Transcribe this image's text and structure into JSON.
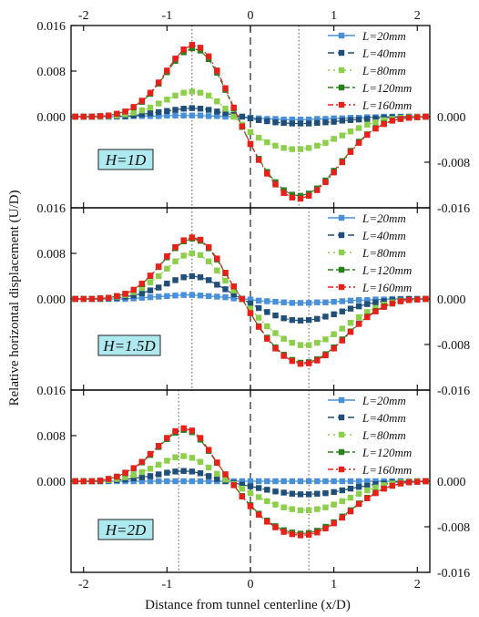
{
  "figure": {
    "xlabel": "Distance from tunnel centerline (x/D)",
    "ylabel": "Relative horizontal displacement (U/D)",
    "colors": {
      "L=20mm": "#4a90d9",
      "L=40mm": "#1f4e79",
      "L=80mm": "#8ccf4a",
      "L=120mm": "#2e7d1e",
      "L=160mm": "#e8201a",
      "label_box": "#aee9f0"
    }
  },
  "chart_data": [
    {
      "type": "line",
      "panel_label": "H=1D",
      "xlim": [
        -2.15,
        2.15
      ],
      "ylim": [
        -0.016,
        0.016
      ],
      "xticks": [
        -2,
        -1,
        0,
        1,
        2
      ],
      "xtick_labels": [
        "-2",
        "-1",
        "0",
        "1",
        "2"
      ],
      "yticks_left": [
        0.0,
        0.008,
        0.016
      ],
      "ytick_labels_left": [
        "0.000",
        "0.008",
        "0.016"
      ],
      "yticks_right": [
        -0.016,
        -0.008,
        0.0
      ],
      "ytick_labels_right": [
        "-0.016",
        "-0.008",
        "0.000"
      ],
      "show_top_tick_labels": true,
      "show_bottom_tick_labels": false,
      "vertical_reference_lines": [
        -0.7,
        0.58
      ],
      "legend_position": "top-right",
      "x": [
        -2.1,
        -2.0,
        -1.9,
        -1.8,
        -1.7,
        -1.6,
        -1.5,
        -1.4,
        -1.3,
        -1.2,
        -1.1,
        -1.0,
        -0.9,
        -0.8,
        -0.7,
        -0.6,
        -0.5,
        -0.4,
        -0.3,
        -0.2,
        -0.1,
        0.0,
        0.1,
        0.2,
        0.3,
        0.4,
        0.5,
        0.6,
        0.7,
        0.8,
        0.9,
        1.0,
        1.1,
        1.2,
        1.3,
        1.4,
        1.5,
        1.6,
        1.7,
        1.8,
        1.9,
        2.0,
        2.1
      ],
      "series": [
        {
          "name": "L=20mm",
          "marker": "square",
          "values": [
            0.0,
            0.0,
            0.0,
            0.0,
            0.0,
            0.0,
            0.0,
            0.0001,
            0.0001,
            0.0001,
            0.0001,
            0.0002,
            0.0002,
            0.0002,
            0.0002,
            0.0002,
            0.0001,
            0.0001,
            0.0,
            0.0,
            0.0,
            -0.0002,
            -0.0003,
            -0.0004,
            -0.0004,
            -0.0005,
            -0.0005,
            -0.0005,
            -0.0005,
            -0.0004,
            -0.0004,
            -0.0003,
            -0.0003,
            -0.0002,
            -0.0002,
            -0.0001,
            -0.0001,
            0.0,
            0.0,
            0.0,
            0.0,
            0.0,
            0.0
          ]
        },
        {
          "name": "L=40mm",
          "marker": "square",
          "values": [
            0.0,
            0.0,
            0.0,
            0.0,
            0.0,
            0.0001,
            0.0001,
            0.0002,
            0.0004,
            0.0006,
            0.0008,
            0.001,
            0.0012,
            0.0014,
            0.0015,
            0.0014,
            0.0012,
            0.0009,
            0.0006,
            0.0003,
            0.0,
            -0.0003,
            -0.0006,
            -0.0008,
            -0.001,
            -0.0011,
            -0.0012,
            -0.0012,
            -0.0012,
            -0.0011,
            -0.001,
            -0.0009,
            -0.0007,
            -0.0006,
            -0.0005,
            -0.0004,
            -0.0003,
            -0.0002,
            -0.0001,
            -0.0001,
            0.0,
            0.0,
            0.0
          ]
        },
        {
          "name": "L=80mm",
          "marker": "square",
          "values": [
            0.0,
            0.0,
            0.0,
            0.0,
            0.0001,
            0.0002,
            0.0004,
            0.0007,
            0.0011,
            0.0016,
            0.0023,
            0.003,
            0.0037,
            0.0042,
            0.0044,
            0.0042,
            0.0037,
            0.0027,
            0.0014,
            0.0,
            -0.0014,
            -0.0027,
            -0.0037,
            -0.0045,
            -0.0051,
            -0.0055,
            -0.0057,
            -0.0057,
            -0.0055,
            -0.0051,
            -0.0046,
            -0.0039,
            -0.0033,
            -0.0026,
            -0.002,
            -0.0014,
            -0.001,
            -0.0006,
            -0.0004,
            -0.0002,
            -0.0001,
            0.0,
            0.0
          ]
        },
        {
          "name": "L=120mm",
          "marker": "square",
          "values": [
            0.0,
            0.0,
            0.0,
            0.0001,
            0.0002,
            0.0005,
            0.0009,
            0.0016,
            0.0026,
            0.004,
            0.0058,
            0.0078,
            0.0098,
            0.0113,
            0.012,
            0.0116,
            0.0101,
            0.0077,
            0.0047,
            0.0014,
            -0.0018,
            -0.0048,
            -0.0074,
            -0.0097,
            -0.0115,
            -0.0129,
            -0.0137,
            -0.0139,
            -0.0135,
            -0.0126,
            -0.0112,
            -0.0095,
            -0.0078,
            -0.006,
            -0.0044,
            -0.0031,
            -0.002,
            -0.0012,
            -0.0007,
            -0.0004,
            -0.0002,
            -0.0001,
            0.0
          ]
        },
        {
          "name": "L=160mm",
          "marker": "square",
          "values": [
            0.0,
            0.0,
            0.0,
            0.0001,
            0.0002,
            0.0005,
            0.0009,
            0.0017,
            0.0028,
            0.0042,
            0.006,
            0.0081,
            0.0102,
            0.0118,
            0.0126,
            0.0121,
            0.0106,
            0.0081,
            0.005,
            0.0016,
            -0.0017,
            -0.0048,
            -0.0076,
            -0.01,
            -0.0119,
            -0.0134,
            -0.0142,
            -0.0144,
            -0.0139,
            -0.0129,
            -0.0115,
            -0.0098,
            -0.008,
            -0.0062,
            -0.0046,
            -0.0032,
            -0.0021,
            -0.0013,
            -0.0007,
            -0.0004,
            -0.0002,
            -0.0001,
            0.0
          ]
        }
      ]
    },
    {
      "type": "line",
      "panel_label": "H=1.5D",
      "xlim": [
        -2.15,
        2.15
      ],
      "ylim": [
        -0.016,
        0.016
      ],
      "xticks": [
        -2,
        -1,
        0,
        1,
        2
      ],
      "xtick_labels": [
        "-2",
        "-1",
        "0",
        "1",
        "2"
      ],
      "yticks_left": [
        0.0,
        0.008,
        0.016
      ],
      "ytick_labels_left": [
        "0.000",
        "0.008",
        "0.016"
      ],
      "yticks_right": [
        -0.016,
        -0.008,
        0.0
      ],
      "ytick_labels_right": [
        "-0.016",
        "-0.008",
        "0.000"
      ],
      "show_top_tick_labels": false,
      "show_bottom_tick_labels": false,
      "vertical_reference_lines": [
        -0.7,
        0.7
      ],
      "legend_position": "top-right",
      "x": [
        -2.1,
        -2.0,
        -1.9,
        -1.8,
        -1.7,
        -1.6,
        -1.5,
        -1.4,
        -1.3,
        -1.2,
        -1.1,
        -1.0,
        -0.9,
        -0.8,
        -0.7,
        -0.6,
        -0.5,
        -0.4,
        -0.3,
        -0.2,
        -0.1,
        0.0,
        0.1,
        0.2,
        0.3,
        0.4,
        0.5,
        0.6,
        0.7,
        0.8,
        0.9,
        1.0,
        1.1,
        1.2,
        1.3,
        1.4,
        1.5,
        1.6,
        1.7,
        1.8,
        1.9,
        2.0,
        2.1
      ],
      "series": [
        {
          "name": "L=20mm",
          "marker": "square",
          "values": [
            0.0,
            0.0,
            0.0,
            0.0,
            0.0,
            0.0,
            0.0,
            0.0001,
            0.0002,
            0.0003,
            0.0004,
            0.0005,
            0.0006,
            0.0007,
            0.0007,
            0.0006,
            0.0005,
            0.0004,
            0.0003,
            0.0001,
            0.0,
            -0.0001,
            -0.0003,
            -0.0004,
            -0.0005,
            -0.0006,
            -0.0007,
            -0.0007,
            -0.0007,
            -0.0006,
            -0.0006,
            -0.0005,
            -0.0004,
            -0.0003,
            -0.0002,
            -0.0002,
            -0.0001,
            -0.0001,
            0.0,
            0.0,
            0.0,
            0.0,
            0.0
          ]
        },
        {
          "name": "L=40mm",
          "marker": "square",
          "values": [
            0.0,
            0.0,
            0.0,
            0.0,
            0.0001,
            0.0002,
            0.0004,
            0.0006,
            0.001,
            0.0015,
            0.002,
            0.0027,
            0.0033,
            0.0038,
            0.004,
            0.0038,
            0.0033,
            0.0025,
            0.0017,
            0.0008,
            0.0,
            -0.0008,
            -0.0016,
            -0.0023,
            -0.0029,
            -0.0034,
            -0.0037,
            -0.0038,
            -0.0037,
            -0.0035,
            -0.0031,
            -0.0027,
            -0.0022,
            -0.0017,
            -0.0013,
            -0.0009,
            -0.0006,
            -0.0004,
            -0.0002,
            -0.0001,
            0.0,
            0.0,
            0.0
          ]
        },
        {
          "name": "L=80mm",
          "marker": "square",
          "values": [
            0.0,
            0.0,
            0.0,
            0.0001,
            0.0002,
            0.0004,
            0.0007,
            0.0012,
            0.0019,
            0.0029,
            0.004,
            0.0053,
            0.0066,
            0.0076,
            0.008,
            0.0077,
            0.0066,
            0.005,
            0.0032,
            0.0015,
            0.0,
            -0.0017,
            -0.0033,
            -0.0048,
            -0.006,
            -0.007,
            -0.0077,
            -0.0081,
            -0.0081,
            -0.0077,
            -0.0071,
            -0.0062,
            -0.0052,
            -0.0042,
            -0.0032,
            -0.0023,
            -0.0016,
            -0.001,
            -0.0006,
            -0.0003,
            -0.0002,
            -0.0001,
            0.0
          ]
        },
        {
          "name": "L=120mm",
          "marker": "square",
          "values": [
            0.0,
            0.0,
            0.0,
            0.0001,
            0.0002,
            0.0005,
            0.0009,
            0.0016,
            0.0026,
            0.004,
            0.0056,
            0.0073,
            0.0089,
            0.0101,
            0.0106,
            0.0102,
            0.0089,
            0.0069,
            0.0045,
            0.0022,
            0.0,
            -0.0025,
            -0.0048,
            -0.0068,
            -0.0085,
            -0.0098,
            -0.0107,
            -0.0112,
            -0.0111,
            -0.0106,
            -0.0097,
            -0.0085,
            -0.0071,
            -0.0057,
            -0.0043,
            -0.0031,
            -0.0021,
            -0.0013,
            -0.0008,
            -0.0004,
            -0.0002,
            -0.0001,
            0.0
          ]
        },
        {
          "name": "L=160mm",
          "marker": "square",
          "values": [
            0.0,
            0.0,
            0.0,
            0.0001,
            0.0002,
            0.0005,
            0.0009,
            0.0016,
            0.0027,
            0.0041,
            0.0057,
            0.0075,
            0.0091,
            0.0103,
            0.0108,
            0.0104,
            0.0091,
            0.0071,
            0.0046,
            0.0022,
            0.0,
            -0.0025,
            -0.0049,
            -0.007,
            -0.0087,
            -0.01,
            -0.0109,
            -0.0114,
            -0.0113,
            -0.0108,
            -0.0099,
            -0.0087,
            -0.0073,
            -0.0058,
            -0.0044,
            -0.0032,
            -0.0022,
            -0.0014,
            -0.0008,
            -0.0004,
            -0.0002,
            -0.0001,
            0.0
          ]
        }
      ]
    },
    {
      "type": "line",
      "panel_label": "H=2D",
      "xlim": [
        -2.15,
        2.15
      ],
      "ylim": [
        -0.016,
        0.016
      ],
      "xticks": [
        -2,
        -1,
        0,
        1,
        2
      ],
      "xtick_labels": [
        "-2",
        "-1",
        "0",
        "1",
        "2"
      ],
      "yticks_left": [
        0.0,
        0.008,
        0.016
      ],
      "ytick_labels_left": [
        "0.000",
        "0.008",
        "0.016"
      ],
      "yticks_right": [
        -0.016,
        -0.008,
        0.0
      ],
      "ytick_labels_right": [
        "-0.016",
        "-0.008",
        "0.000"
      ],
      "show_top_tick_labels": false,
      "show_bottom_tick_labels": true,
      "vertical_reference_lines": [
        -0.86,
        0.7
      ],
      "legend_position": "top-right",
      "x": [
        -2.1,
        -2.0,
        -1.9,
        -1.8,
        -1.7,
        -1.6,
        -1.5,
        -1.4,
        -1.3,
        -1.2,
        -1.1,
        -1.0,
        -0.9,
        -0.8,
        -0.7,
        -0.6,
        -0.5,
        -0.4,
        -0.3,
        -0.2,
        -0.1,
        0.0,
        0.1,
        0.2,
        0.3,
        0.4,
        0.5,
        0.6,
        0.7,
        0.8,
        0.9,
        1.0,
        1.1,
        1.2,
        1.3,
        1.4,
        1.5,
        1.6,
        1.7,
        1.8,
        1.9,
        2.0,
        2.1
      ],
      "series": [
        {
          "name": "L=20mm",
          "marker": "square",
          "values": [
            0.0,
            0.0,
            0.0,
            0.0,
            0.0,
            0.0,
            0.0,
            0.0,
            0.0,
            0.0,
            0.0,
            0.0,
            0.0,
            0.0,
            0.0,
            0.0,
            0.0,
            0.0,
            0.0,
            0.0,
            0.0,
            0.0,
            0.0,
            0.0,
            0.0,
            0.0,
            0.0,
            0.0,
            0.0,
            0.0,
            0.0,
            0.0,
            0.0,
            0.0,
            0.0,
            0.0,
            0.0,
            0.0,
            0.0,
            0.0,
            0.0,
            0.0,
            0.0
          ]
        },
        {
          "name": "L=40mm",
          "marker": "square",
          "values": [
            0.0,
            0.0,
            0.0,
            0.0,
            0.0001,
            0.0002,
            0.0003,
            0.0005,
            0.0007,
            0.0009,
            0.0012,
            0.0015,
            0.0017,
            0.0018,
            0.0017,
            0.0014,
            0.0009,
            0.0004,
            0.0,
            -0.0003,
            -0.0006,
            -0.0009,
            -0.0012,
            -0.0015,
            -0.0018,
            -0.002,
            -0.0022,
            -0.0023,
            -0.0023,
            -0.0022,
            -0.0021,
            -0.0019,
            -0.0016,
            -0.0013,
            -0.001,
            -0.0008,
            -0.0005,
            -0.0004,
            -0.0002,
            -0.0001,
            -0.0001,
            0.0,
            0.0
          ]
        },
        {
          "name": "L=80mm",
          "marker": "square",
          "values": [
            0.0,
            0.0,
            0.0,
            0.0001,
            0.0002,
            0.0004,
            0.0007,
            0.0011,
            0.0016,
            0.0022,
            0.0029,
            0.0036,
            0.0042,
            0.0044,
            0.0041,
            0.0034,
            0.0024,
            0.0013,
            0.0003,
            -0.0005,
            -0.0013,
            -0.0021,
            -0.0028,
            -0.0035,
            -0.0041,
            -0.0046,
            -0.0049,
            -0.0051,
            -0.0051,
            -0.0049,
            -0.0046,
            -0.0041,
            -0.0035,
            -0.0029,
            -0.0022,
            -0.0016,
            -0.0011,
            -0.0007,
            -0.0004,
            -0.0002,
            -0.0001,
            0.0,
            0.0
          ]
        },
        {
          "name": "L=120mm",
          "marker": "square",
          "values": [
            0.0,
            0.0,
            0.0,
            0.0001,
            0.0004,
            0.0008,
            0.0014,
            0.0022,
            0.0033,
            0.0046,
            0.006,
            0.0074,
            0.0085,
            0.009,
            0.0086,
            0.0073,
            0.0053,
            0.0032,
            0.0012,
            -0.0007,
            -0.0026,
            -0.0042,
            -0.0057,
            -0.0069,
            -0.0079,
            -0.0086,
            -0.009,
            -0.0092,
            -0.0091,
            -0.0087,
            -0.008,
            -0.0072,
            -0.0062,
            -0.0051,
            -0.0039,
            -0.0029,
            -0.002,
            -0.0013,
            -0.0008,
            -0.0004,
            -0.0002,
            -0.0001,
            0.0
          ]
        },
        {
          "name": "L=160mm",
          "marker": "square",
          "values": [
            0.0,
            0.0,
            0.0,
            0.0001,
            0.0004,
            0.0008,
            0.0015,
            0.0023,
            0.0034,
            0.0048,
            0.0062,
            0.0076,
            0.0088,
            0.0093,
            0.0089,
            0.0076,
            0.0055,
            0.0033,
            0.0012,
            -0.0007,
            -0.0027,
            -0.0044,
            -0.0059,
            -0.0071,
            -0.0081,
            -0.0089,
            -0.0093,
            -0.0095,
            -0.0094,
            -0.009,
            -0.0083,
            -0.0074,
            -0.0064,
            -0.0053,
            -0.004,
            -0.003,
            -0.0021,
            -0.0013,
            -0.0008,
            -0.0004,
            -0.0002,
            -0.0001,
            0.0
          ]
        }
      ]
    }
  ]
}
